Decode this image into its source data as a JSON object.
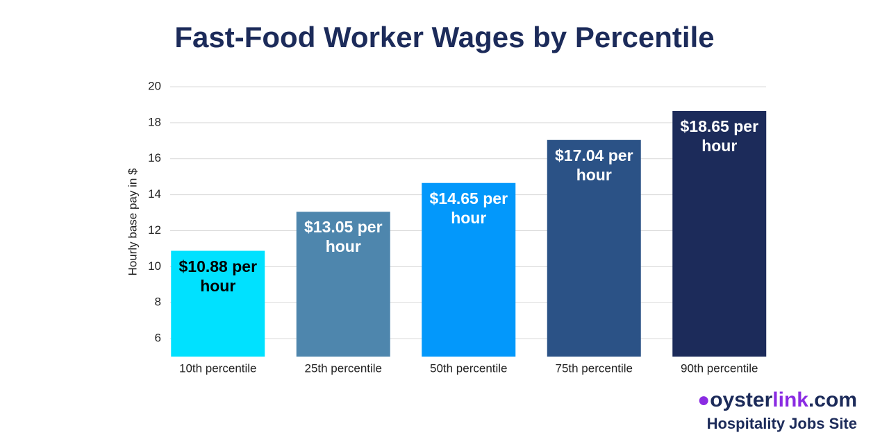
{
  "chart_data": {
    "type": "bar",
    "title": "Fast-Food Worker Wages by Percentile",
    "ylabel": "Hourly base pay in $",
    "categories": [
      "10th percentile",
      "25th percentile",
      "50th percentile",
      "75th percentile",
      "90th percentile"
    ],
    "values": [
      10.88,
      13.05,
      14.65,
      17.04,
      18.65
    ],
    "value_labels": [
      "$10.88 per hour",
      "$13.05 per hour",
      "$14.65 per hour",
      "$17.04 per hour",
      "$18.65 per hour"
    ],
    "colors": [
      "#00e1ff",
      "#4e86ad",
      "#0398fb",
      "#2b5286",
      "#1c2b5a"
    ],
    "value_label_colors": [
      "#000000",
      "#ffffff",
      "#ffffff",
      "#ffffff",
      "#ffffff"
    ],
    "ylim": [
      5,
      20
    ],
    "yticks": [
      6,
      8,
      10,
      12,
      14,
      16,
      18,
      20
    ],
    "grid": true
  },
  "brand": {
    "parts": [
      "oyster",
      "link",
      ".com"
    ],
    "tagline": "Hospitality Jobs Site"
  }
}
